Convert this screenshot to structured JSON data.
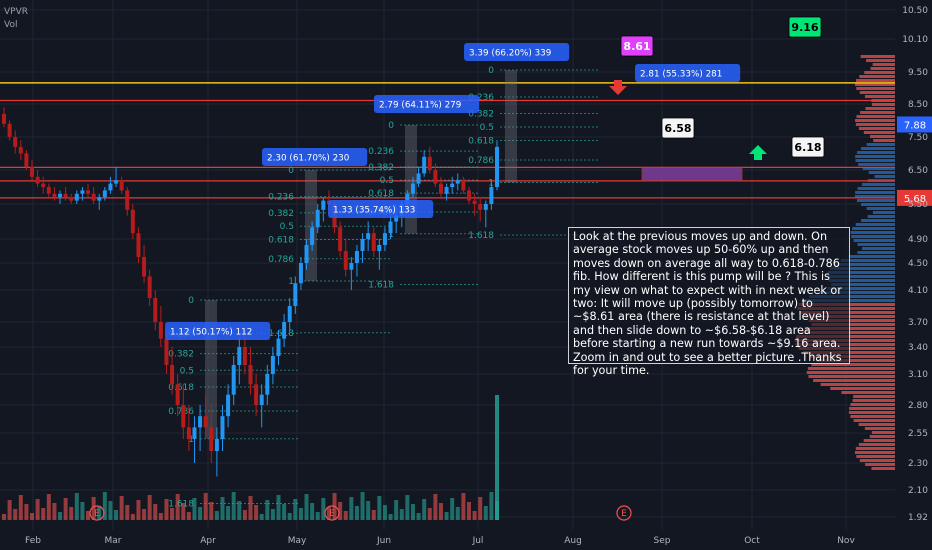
{
  "legend": {
    "symbol": "VPVR",
    "volume": "Vol"
  },
  "note": "Look at the previous moves up and down. On average stock moves up 50-60% up and then moves down on average all way to 0.618-0.786 fib. How different is this pump will be ? This is my view on what to expect with in next week or two: It will move up (possibly tomorrow) to ~$8.61 area (there is resistance at that level) and then slide down to ~$6.58-$6.18 area before starting a new run towards ~$9.16 area. Zoom in and out to see a better picture .Thanks for your time.",
  "colors": {
    "background": "#131722",
    "up": "#26a69a",
    "down": "#ef5350",
    "candle_up": "#2196f3",
    "candle_down": "#b71c1c",
    "fib_level": "#2962ff",
    "yellow_line": "#f0c419",
    "red_line": "#e53935",
    "purple_zone": "#8e44ad",
    "price_tag_blue": "#2962ff",
    "price_tag_red": "#e53935"
  },
  "chart_data": {
    "type": "candlestick",
    "symbol": "VPVR",
    "x_ticks": [
      "Feb",
      "Mar",
      "Apr",
      "May",
      "Jun",
      "Jul",
      "Aug",
      "Sep",
      "Oct",
      "Nov"
    ],
    "y_ticks": [
      "10.50",
      "10.10",
      "9.50",
      "8.50",
      "7.50",
      "6.50",
      "5.50",
      "4.90",
      "4.50",
      "4.10",
      "3.70",
      "3.40",
      "3.10",
      "2.80",
      "2.55",
      "2.30",
      "2.10",
      "1.92"
    ],
    "ylim": [
      1.92,
      10.5
    ],
    "last_price_tag": "7.88",
    "level_price_tag": "5.68",
    "horizontal_levels": [
      {
        "price": 9.16,
        "color": "#f0c419"
      },
      {
        "price": 8.61,
        "color": "#e53935"
      },
      {
        "price": 6.58,
        "color": "#e53935"
      },
      {
        "price": 6.18,
        "color": "#e53935"
      },
      {
        "price": 5.68,
        "color": "#e53935"
      }
    ],
    "price_labels": [
      {
        "text": "9.16",
        "style": "green"
      },
      {
        "text": "8.61",
        "style": "magenta"
      },
      {
        "text": "6.58",
        "style": "white"
      },
      {
        "text": "6.18",
        "style": "white"
      }
    ],
    "measure_labels": [
      "1.12 (50.17%) 112",
      "2.30 (61.70%) 230",
      "1.33 (35.74%) 133",
      "2.79 (64.11%) 279",
      "3.39 (66.20%) 339",
      "2.81 (55.33%) 281"
    ],
    "fib_levels": [
      "0",
      "0.236",
      "0.382",
      "0.5",
      "0.618",
      "0.786",
      "1",
      "1.618"
    ],
    "events": [
      "E",
      "E",
      "E"
    ],
    "candles": [
      [
        8.2,
        8.4,
        7.8,
        7.9
      ],
      [
        7.9,
        8.0,
        7.4,
        7.5
      ],
      [
        7.5,
        7.7,
        7.0,
        7.2
      ],
      [
        7.2,
        7.4,
        6.8,
        7.0
      ],
      [
        7.0,
        7.1,
        6.5,
        6.6
      ],
      [
        6.6,
        6.8,
        6.2,
        6.3
      ],
      [
        6.3,
        6.5,
        6.0,
        6.1
      ],
      [
        6.1,
        6.3,
        5.8,
        6.0
      ],
      [
        6.0,
        6.1,
        5.7,
        5.8
      ],
      [
        5.8,
        6.0,
        5.6,
        5.7
      ],
      [
        5.7,
        5.9,
        5.5,
        5.8
      ],
      [
        5.8,
        6.0,
        5.6,
        5.7
      ],
      [
        5.7,
        5.8,
        5.5,
        5.6
      ],
      [
        5.6,
        5.9,
        5.5,
        5.8
      ],
      [
        5.8,
        6.0,
        5.6,
        5.9
      ],
      [
        5.9,
        6.1,
        5.7,
        5.8
      ],
      [
        5.8,
        6.0,
        5.5,
        5.6
      ],
      [
        5.6,
        5.8,
        5.4,
        5.7
      ],
      [
        5.7,
        6.0,
        5.6,
        5.9
      ],
      [
        5.9,
        6.3,
        5.8,
        6.1
      ],
      [
        6.1,
        6.6,
        6.0,
        6.2
      ],
      [
        6.2,
        6.3,
        5.8,
        5.9
      ],
      [
        5.9,
        6.0,
        5.3,
        5.4
      ],
      [
        5.4,
        5.5,
        4.9,
        5.0
      ],
      [
        5.0,
        5.1,
        4.5,
        4.6
      ],
      [
        4.6,
        4.8,
        4.2,
        4.3
      ],
      [
        4.3,
        4.4,
        3.9,
        4.0
      ],
      [
        4.0,
        4.1,
        3.6,
        3.7
      ],
      [
        3.7,
        3.9,
        3.4,
        3.5
      ],
      [
        3.5,
        3.6,
        3.1,
        3.2
      ],
      [
        3.2,
        3.4,
        2.9,
        3.0
      ],
      [
        3.0,
        3.1,
        2.7,
        2.8
      ],
      [
        2.8,
        3.0,
        2.5,
        2.6
      ],
      [
        2.6,
        2.8,
        2.4,
        2.5
      ],
      [
        2.5,
        2.7,
        2.3,
        2.6
      ],
      [
        2.6,
        2.8,
        2.4,
        2.7
      ],
      [
        2.7,
        2.9,
        2.5,
        2.6
      ],
      [
        2.6,
        2.8,
        2.3,
        2.4
      ],
      [
        2.4,
        2.6,
        2.2,
        2.5
      ],
      [
        2.5,
        2.8,
        2.4,
        2.7
      ],
      [
        2.7,
        3.0,
        2.6,
        2.9
      ],
      [
        2.9,
        3.3,
        2.8,
        3.2
      ],
      [
        3.2,
        3.5,
        3.0,
        3.4
      ],
      [
        3.4,
        3.6,
        3.1,
        3.2
      ],
      [
        3.2,
        3.4,
        2.9,
        3.0
      ],
      [
        3.0,
        3.1,
        2.7,
        2.8
      ],
      [
        2.8,
        3.0,
        2.6,
        2.9
      ],
      [
        2.9,
        3.2,
        2.8,
        3.1
      ],
      [
        3.1,
        3.4,
        3.0,
        3.3
      ],
      [
        3.3,
        3.6,
        3.2,
        3.5
      ],
      [
        3.5,
        3.8,
        3.4,
        3.7
      ],
      [
        3.7,
        4.0,
        3.6,
        3.9
      ],
      [
        3.9,
        4.3,
        3.8,
        4.2
      ],
      [
        4.2,
        4.6,
        4.1,
        4.5
      ],
      [
        4.5,
        4.9,
        4.4,
        4.8
      ],
      [
        4.8,
        5.2,
        4.7,
        5.1
      ],
      [
        5.1,
        5.5,
        5.0,
        5.4
      ],
      [
        5.4,
        5.7,
        5.2,
        5.6
      ],
      [
        5.6,
        5.9,
        5.4,
        5.5
      ],
      [
        5.5,
        5.6,
        5.0,
        5.1
      ],
      [
        5.1,
        5.2,
        4.6,
        4.7
      ],
      [
        4.7,
        4.9,
        4.3,
        4.4
      ],
      [
        4.4,
        4.6,
        4.1,
        4.5
      ],
      [
        4.5,
        4.8,
        4.3,
        4.7
      ],
      [
        4.7,
        5.0,
        4.5,
        4.9
      ],
      [
        4.9,
        5.2,
        4.7,
        5.0
      ],
      [
        5.0,
        5.1,
        4.6,
        4.7
      ],
      [
        4.7,
        4.9,
        4.4,
        4.8
      ],
      [
        4.8,
        5.1,
        4.7,
        5.0
      ],
      [
        5.0,
        5.3,
        4.9,
        5.2
      ],
      [
        5.2,
        5.5,
        5.0,
        5.3
      ],
      [
        5.3,
        5.6,
        5.1,
        5.5
      ],
      [
        5.5,
        5.9,
        5.4,
        5.8
      ],
      [
        5.8,
        6.3,
        5.7,
        6.1
      ],
      [
        6.1,
        6.6,
        6.0,
        6.4
      ],
      [
        6.4,
        7.1,
        6.3,
        6.9
      ],
      [
        6.9,
        7.2,
        6.4,
        6.5
      ],
      [
        6.5,
        6.7,
        6.0,
        6.1
      ],
      [
        6.1,
        6.3,
        5.7,
        5.8
      ],
      [
        5.8,
        6.1,
        5.6,
        6.0
      ],
      [
        6.0,
        6.3,
        5.8,
        6.1
      ],
      [
        6.1,
        6.4,
        5.9,
        6.2
      ],
      [
        6.2,
        6.3,
        5.8,
        5.9
      ],
      [
        5.9,
        6.0,
        5.5,
        5.6
      ],
      [
        5.6,
        5.8,
        5.3,
        5.5
      ],
      [
        5.5,
        5.7,
        5.2,
        5.4
      ],
      [
        5.4,
        5.6,
        5.1,
        5.5
      ],
      [
        5.5,
        6.2,
        5.4,
        6.0
      ],
      [
        6.0,
        7.4,
        5.9,
        7.2
      ]
    ]
  }
}
